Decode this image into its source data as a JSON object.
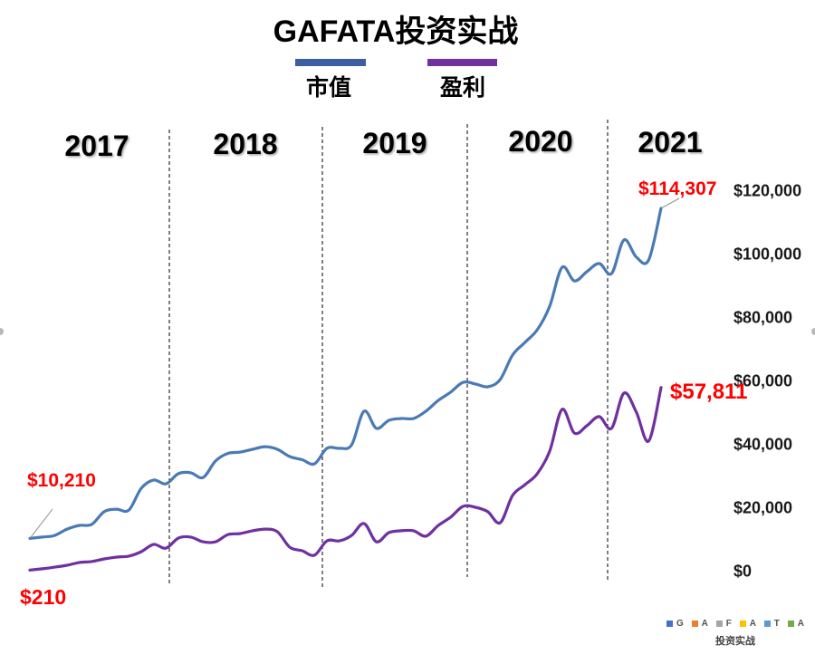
{
  "chart_data": {
    "type": "line",
    "title": "GAFATA投资实战",
    "xlabel": "",
    "ylabel": "",
    "year_labels": [
      "2017",
      "2018",
      "2019",
      "2020",
      "2021"
    ],
    "ylim": [
      0,
      120000
    ],
    "grid": false,
    "legend_position": "top-center",
    "y_ticks": [
      {
        "value": 0,
        "label": "$0"
      },
      {
        "value": 20000,
        "label": "$20,000"
      },
      {
        "value": 40000,
        "label": "$40,000"
      },
      {
        "value": 60000,
        "label": "$60,000"
      },
      {
        "value": 80000,
        "label": "$80,000"
      },
      {
        "value": 100000,
        "label": "$100,000"
      },
      {
        "value": 120000,
        "label": "$120,000"
      }
    ],
    "series": [
      {
        "name": "市值",
        "color": "#4a7ab5",
        "legend_color": "#3c5ea3",
        "values": [
          10210,
          10600,
          11100,
          13100,
          14300,
          14600,
          18600,
          19400,
          19100,
          26000,
          28600,
          27400,
          30600,
          30900,
          29400,
          34600,
          37000,
          37400,
          38300,
          39100,
          38300,
          36000,
          35000,
          33700,
          38600,
          38600,
          39700,
          50300,
          44900,
          47400,
          48000,
          48000,
          50300,
          53700,
          56300,
          59400,
          58900,
          58000,
          60300,
          68000,
          72000,
          76000,
          83400,
          95700,
          91400,
          94300,
          96900,
          93700,
          104300,
          98900,
          98000,
          114307
        ]
      },
      {
        "name": "盈利",
        "color": "#7030a0",
        "legend_color": "#7030a0",
        "values": [
          210,
          600,
          1100,
          1700,
          2600,
          2900,
          3700,
          4300,
          4600,
          6000,
          8300,
          7100,
          10300,
          10600,
          9100,
          9100,
          11400,
          11700,
          12600,
          13100,
          12300,
          7400,
          6300,
          4900,
          9400,
          9400,
          11100,
          14900,
          9100,
          12000,
          12600,
          12600,
          10900,
          14300,
          16900,
          20300,
          20000,
          18600,
          15100,
          23700,
          27100,
          30600,
          37700,
          50900,
          43400,
          45700,
          48600,
          44900,
          56000,
          50000,
          40900,
          57811
        ]
      }
    ],
    "annotations": [
      {
        "text": "$10,210",
        "series": 0,
        "index": 0
      },
      {
        "text": "$210",
        "series": 1,
        "index": 0
      },
      {
        "text": "$114,307",
        "series": 0,
        "index": 51
      },
      {
        "text": "$57,811",
        "series": 1,
        "index": 51
      }
    ],
    "annotation_color": "#ff0000"
  },
  "watermark": {
    "items": [
      {
        "letter": "G",
        "color": "#4472c4"
      },
      {
        "letter": "A",
        "color": "#ed7d31"
      },
      {
        "letter": "F",
        "color": "#a5a5a5"
      },
      {
        "letter": "A",
        "color": "#ffc000"
      },
      {
        "letter": "T",
        "color": "#5b9bd5"
      },
      {
        "letter": "A",
        "color": "#70ad47"
      }
    ],
    "caption": "投资实战"
  }
}
